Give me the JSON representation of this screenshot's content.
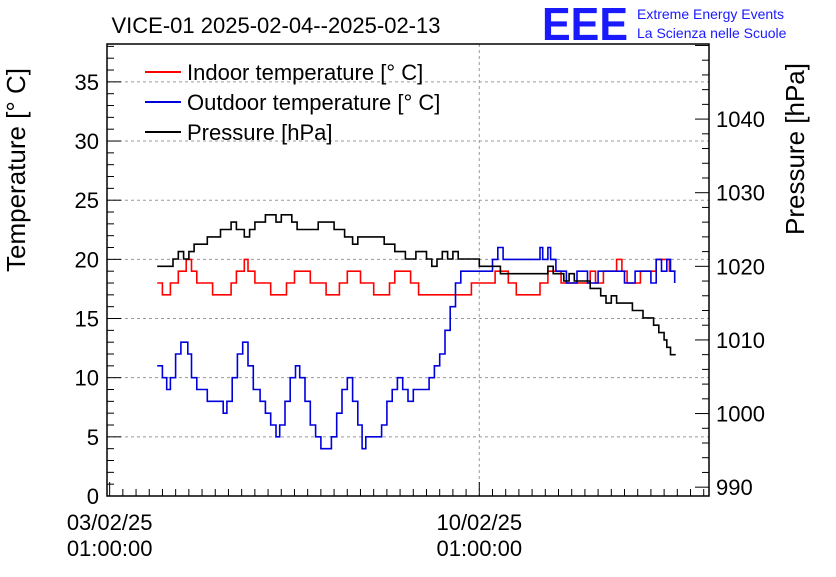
{
  "chart_data": {
    "type": "line",
    "title": "VICE-01 2025-02-04--2025-02-13",
    "logo": {
      "mark": "EEE",
      "line1": "Extreme Energy Events",
      "line2": "La Scienza nelle Scuole",
      "color": "#1a1aff"
    },
    "xaxis": {
      "ticks": [
        {
          "x": 0,
          "date": "03/02/25",
          "time": "01:00:00"
        },
        {
          "x": 7,
          "date": "10/02/25",
          "time": "01:00:00"
        }
      ],
      "xlim": [
        -0.05,
        11.35
      ],
      "unit": "days since 03/02/25 01:00:00"
    },
    "ylabel": "Temperature [° C]",
    "ylim": [
      0,
      38.2
    ],
    "yticks": [
      0,
      5,
      10,
      15,
      20,
      25,
      30,
      35
    ],
    "y2label": "Pressure [hPa]",
    "y2lim": [
      988.8,
      1050.2
    ],
    "y2ticks": [
      990,
      1000,
      1010,
      1020,
      1030,
      1040
    ],
    "grid": true,
    "legend_position": "top-left",
    "series": [
      {
        "name": "Indoor temperature [° C]",
        "axis": "left",
        "color": "#ff0000",
        "points": [
          [
            0.9,
            18
          ],
          [
            1.0,
            17
          ],
          [
            1.15,
            18
          ],
          [
            1.3,
            19
          ],
          [
            1.45,
            20
          ],
          [
            1.55,
            19
          ],
          [
            1.65,
            18
          ],
          [
            1.8,
            18
          ],
          [
            1.95,
            17
          ],
          [
            2.15,
            17
          ],
          [
            2.3,
            18
          ],
          [
            2.4,
            19
          ],
          [
            2.5,
            19
          ],
          [
            2.55,
            20
          ],
          [
            2.62,
            19
          ],
          [
            2.75,
            18
          ],
          [
            2.9,
            18
          ],
          [
            3.05,
            17
          ],
          [
            3.2,
            17
          ],
          [
            3.35,
            18
          ],
          [
            3.5,
            19
          ],
          [
            3.7,
            19
          ],
          [
            3.8,
            18
          ],
          [
            3.95,
            18
          ],
          [
            4.1,
            17
          ],
          [
            4.25,
            17
          ],
          [
            4.35,
            18
          ],
          [
            4.5,
            19
          ],
          [
            4.65,
            19
          ],
          [
            4.75,
            18
          ],
          [
            4.9,
            18
          ],
          [
            5.0,
            17
          ],
          [
            5.15,
            17
          ],
          [
            5.3,
            18
          ],
          [
            5.4,
            19
          ],
          [
            5.6,
            19
          ],
          [
            5.7,
            18
          ],
          [
            5.85,
            17
          ],
          [
            6.0,
            17
          ],
          [
            6.3,
            17
          ],
          [
            6.6,
            17
          ],
          [
            6.75,
            17
          ],
          [
            6.85,
            18
          ],
          [
            7.0,
            18
          ],
          [
            7.15,
            18
          ],
          [
            7.3,
            19
          ],
          [
            7.45,
            19
          ],
          [
            7.55,
            18
          ],
          [
            7.7,
            17
          ],
          [
            7.85,
            17
          ],
          [
            8.05,
            17
          ],
          [
            8.15,
            18
          ],
          [
            8.3,
            19
          ],
          [
            8.45,
            19
          ],
          [
            8.55,
            18
          ],
          [
            8.7,
            18
          ],
          [
            8.85,
            18
          ],
          [
            9.0,
            18
          ],
          [
            9.1,
            19
          ],
          [
            9.2,
            18
          ],
          [
            9.35,
            19
          ],
          [
            9.5,
            19
          ],
          [
            9.6,
            20
          ],
          [
            9.7,
            19
          ],
          [
            9.8,
            18
          ],
          [
            9.95,
            18
          ],
          [
            10.05,
            19
          ],
          [
            10.2,
            19
          ],
          [
            10.35,
            20
          ],
          [
            10.5,
            20
          ],
          [
            10.6,
            19
          ],
          [
            10.72,
            19
          ]
        ]
      },
      {
        "name": "Outdoor temperature [° C]",
        "axis": "left",
        "color": "#0000dd",
        "points": [
          [
            0.9,
            11
          ],
          [
            1.0,
            10
          ],
          [
            1.08,
            9
          ],
          [
            1.15,
            10
          ],
          [
            1.25,
            12
          ],
          [
            1.35,
            13
          ],
          [
            1.48,
            12
          ],
          [
            1.55,
            10
          ],
          [
            1.65,
            9
          ],
          [
            1.75,
            9
          ],
          [
            1.85,
            8
          ],
          [
            1.95,
            8
          ],
          [
            2.05,
            8
          ],
          [
            2.15,
            7
          ],
          [
            2.22,
            8
          ],
          [
            2.32,
            10
          ],
          [
            2.42,
            12
          ],
          [
            2.52,
            13
          ],
          [
            2.62,
            11
          ],
          [
            2.72,
            9
          ],
          [
            2.85,
            8
          ],
          [
            2.95,
            7
          ],
          [
            3.05,
            6
          ],
          [
            3.15,
            5
          ],
          [
            3.22,
            6
          ],
          [
            3.32,
            8
          ],
          [
            3.42,
            10
          ],
          [
            3.52,
            11
          ],
          [
            3.6,
            10
          ],
          [
            3.7,
            8
          ],
          [
            3.8,
            6
          ],
          [
            3.9,
            5
          ],
          [
            4.0,
            4
          ],
          [
            4.1,
            4
          ],
          [
            4.2,
            5
          ],
          [
            4.3,
            7
          ],
          [
            4.4,
            9
          ],
          [
            4.5,
            10
          ],
          [
            4.6,
            8
          ],
          [
            4.7,
            6
          ],
          [
            4.78,
            4
          ],
          [
            4.85,
            5
          ],
          [
            4.95,
            5
          ],
          [
            5.05,
            5
          ],
          [
            5.15,
            6
          ],
          [
            5.25,
            8
          ],
          [
            5.35,
            9
          ],
          [
            5.45,
            10
          ],
          [
            5.55,
            9
          ],
          [
            5.65,
            8
          ],
          [
            5.75,
            9
          ],
          [
            5.85,
            9
          ],
          [
            5.95,
            9
          ],
          [
            6.05,
            10
          ],
          [
            6.15,
            11
          ],
          [
            6.25,
            12
          ],
          [
            6.35,
            14
          ],
          [
            6.45,
            16
          ],
          [
            6.55,
            18
          ],
          [
            6.65,
            19
          ],
          [
            6.75,
            19
          ],
          [
            6.85,
            19
          ],
          [
            6.95,
            19
          ],
          [
            7.05,
            19
          ],
          [
            7.15,
            19
          ],
          [
            7.25,
            20
          ],
          [
            7.35,
            21
          ],
          [
            7.45,
            20
          ],
          [
            7.6,
            20
          ],
          [
            7.75,
            20
          ],
          [
            7.9,
            20
          ],
          [
            8.05,
            20
          ],
          [
            8.15,
            21
          ],
          [
            8.2,
            20
          ],
          [
            8.3,
            21
          ],
          [
            8.35,
            20
          ],
          [
            8.45,
            19
          ],
          [
            8.55,
            19
          ],
          [
            8.65,
            18
          ],
          [
            8.75,
            18
          ],
          [
            8.85,
            19
          ],
          [
            8.95,
            19
          ],
          [
            9.05,
            18
          ],
          [
            9.15,
            18
          ],
          [
            9.25,
            19
          ],
          [
            9.35,
            19
          ],
          [
            9.5,
            19
          ],
          [
            9.6,
            19
          ],
          [
            9.75,
            18
          ],
          [
            9.85,
            18
          ],
          [
            9.95,
            19
          ],
          [
            10.05,
            19
          ],
          [
            10.15,
            19
          ],
          [
            10.25,
            18
          ],
          [
            10.35,
            20
          ],
          [
            10.45,
            19
          ],
          [
            10.55,
            20
          ],
          [
            10.62,
            19
          ],
          [
            10.7,
            18
          ]
        ]
      },
      {
        "name": "Pressure [hPa]",
        "axis": "right",
        "color": "#000000",
        "points": [
          [
            0.9,
            1020
          ],
          [
            1.1,
            1020
          ],
          [
            1.2,
            1021
          ],
          [
            1.3,
            1022
          ],
          [
            1.4,
            1021
          ],
          [
            1.5,
            1022
          ],
          [
            1.6,
            1023
          ],
          [
            1.75,
            1023
          ],
          [
            1.85,
            1024
          ],
          [
            2.0,
            1024
          ],
          [
            2.1,
            1025
          ],
          [
            2.2,
            1025
          ],
          [
            2.3,
            1026
          ],
          [
            2.4,
            1025
          ],
          [
            2.5,
            1025
          ],
          [
            2.55,
            1024
          ],
          [
            2.65,
            1025
          ],
          [
            2.75,
            1026
          ],
          [
            2.85,
            1026
          ],
          [
            2.95,
            1027
          ],
          [
            3.05,
            1027
          ],
          [
            3.15,
            1026
          ],
          [
            3.25,
            1027
          ],
          [
            3.35,
            1027
          ],
          [
            3.45,
            1026
          ],
          [
            3.55,
            1025
          ],
          [
            3.65,
            1025
          ],
          [
            3.75,
            1025
          ],
          [
            3.85,
            1025
          ],
          [
            3.95,
            1026
          ],
          [
            4.05,
            1026
          ],
          [
            4.15,
            1026
          ],
          [
            4.25,
            1025
          ],
          [
            4.35,
            1025
          ],
          [
            4.45,
            1024
          ],
          [
            4.55,
            1024
          ],
          [
            4.6,
            1023
          ],
          [
            4.7,
            1024
          ],
          [
            4.8,
            1024
          ],
          [
            4.9,
            1024
          ],
          [
            5.0,
            1024
          ],
          [
            5.1,
            1024
          ],
          [
            5.2,
            1023
          ],
          [
            5.3,
            1023
          ],
          [
            5.4,
            1022
          ],
          [
            5.5,
            1022
          ],
          [
            5.6,
            1021
          ],
          [
            5.7,
            1021
          ],
          [
            5.8,
            1022
          ],
          [
            5.9,
            1022
          ],
          [
            6.0,
            1021
          ],
          [
            6.1,
            1020
          ],
          [
            6.2,
            1021
          ],
          [
            6.3,
            1022
          ],
          [
            6.4,
            1021
          ],
          [
            6.5,
            1022
          ],
          [
            6.6,
            1021
          ],
          [
            6.7,
            1021
          ],
          [
            6.8,
            1021
          ],
          [
            6.9,
            1021
          ],
          [
            7.0,
            1020
          ],
          [
            7.1,
            1020
          ],
          [
            7.2,
            1020
          ],
          [
            7.3,
            1020
          ],
          [
            7.4,
            1019
          ],
          [
            7.5,
            1019
          ],
          [
            7.6,
            1019
          ],
          [
            7.7,
            1019
          ],
          [
            7.8,
            1019
          ],
          [
            7.9,
            1019
          ],
          [
            8.0,
            1019
          ],
          [
            8.1,
            1019
          ],
          [
            8.2,
            1019
          ],
          [
            8.3,
            1020
          ],
          [
            8.4,
            1019
          ],
          [
            8.5,
            1019
          ],
          [
            8.6,
            1018
          ],
          [
            8.7,
            1019
          ],
          [
            8.8,
            1018
          ],
          [
            8.9,
            1018
          ],
          [
            9.0,
            1018
          ],
          [
            9.1,
            1017
          ],
          [
            9.2,
            1017
          ],
          [
            9.3,
            1016
          ],
          [
            9.4,
            1015
          ],
          [
            9.5,
            1016
          ],
          [
            9.6,
            1015
          ],
          [
            9.7,
            1015
          ],
          [
            9.8,
            1015
          ],
          [
            9.9,
            1014
          ],
          [
            10.0,
            1014
          ],
          [
            10.1,
            1013
          ],
          [
            10.2,
            1013
          ],
          [
            10.3,
            1012
          ],
          [
            10.4,
            1011
          ],
          [
            10.5,
            1010
          ],
          [
            10.55,
            1009
          ],
          [
            10.62,
            1008
          ],
          [
            10.72,
            1008
          ]
        ]
      }
    ]
  }
}
